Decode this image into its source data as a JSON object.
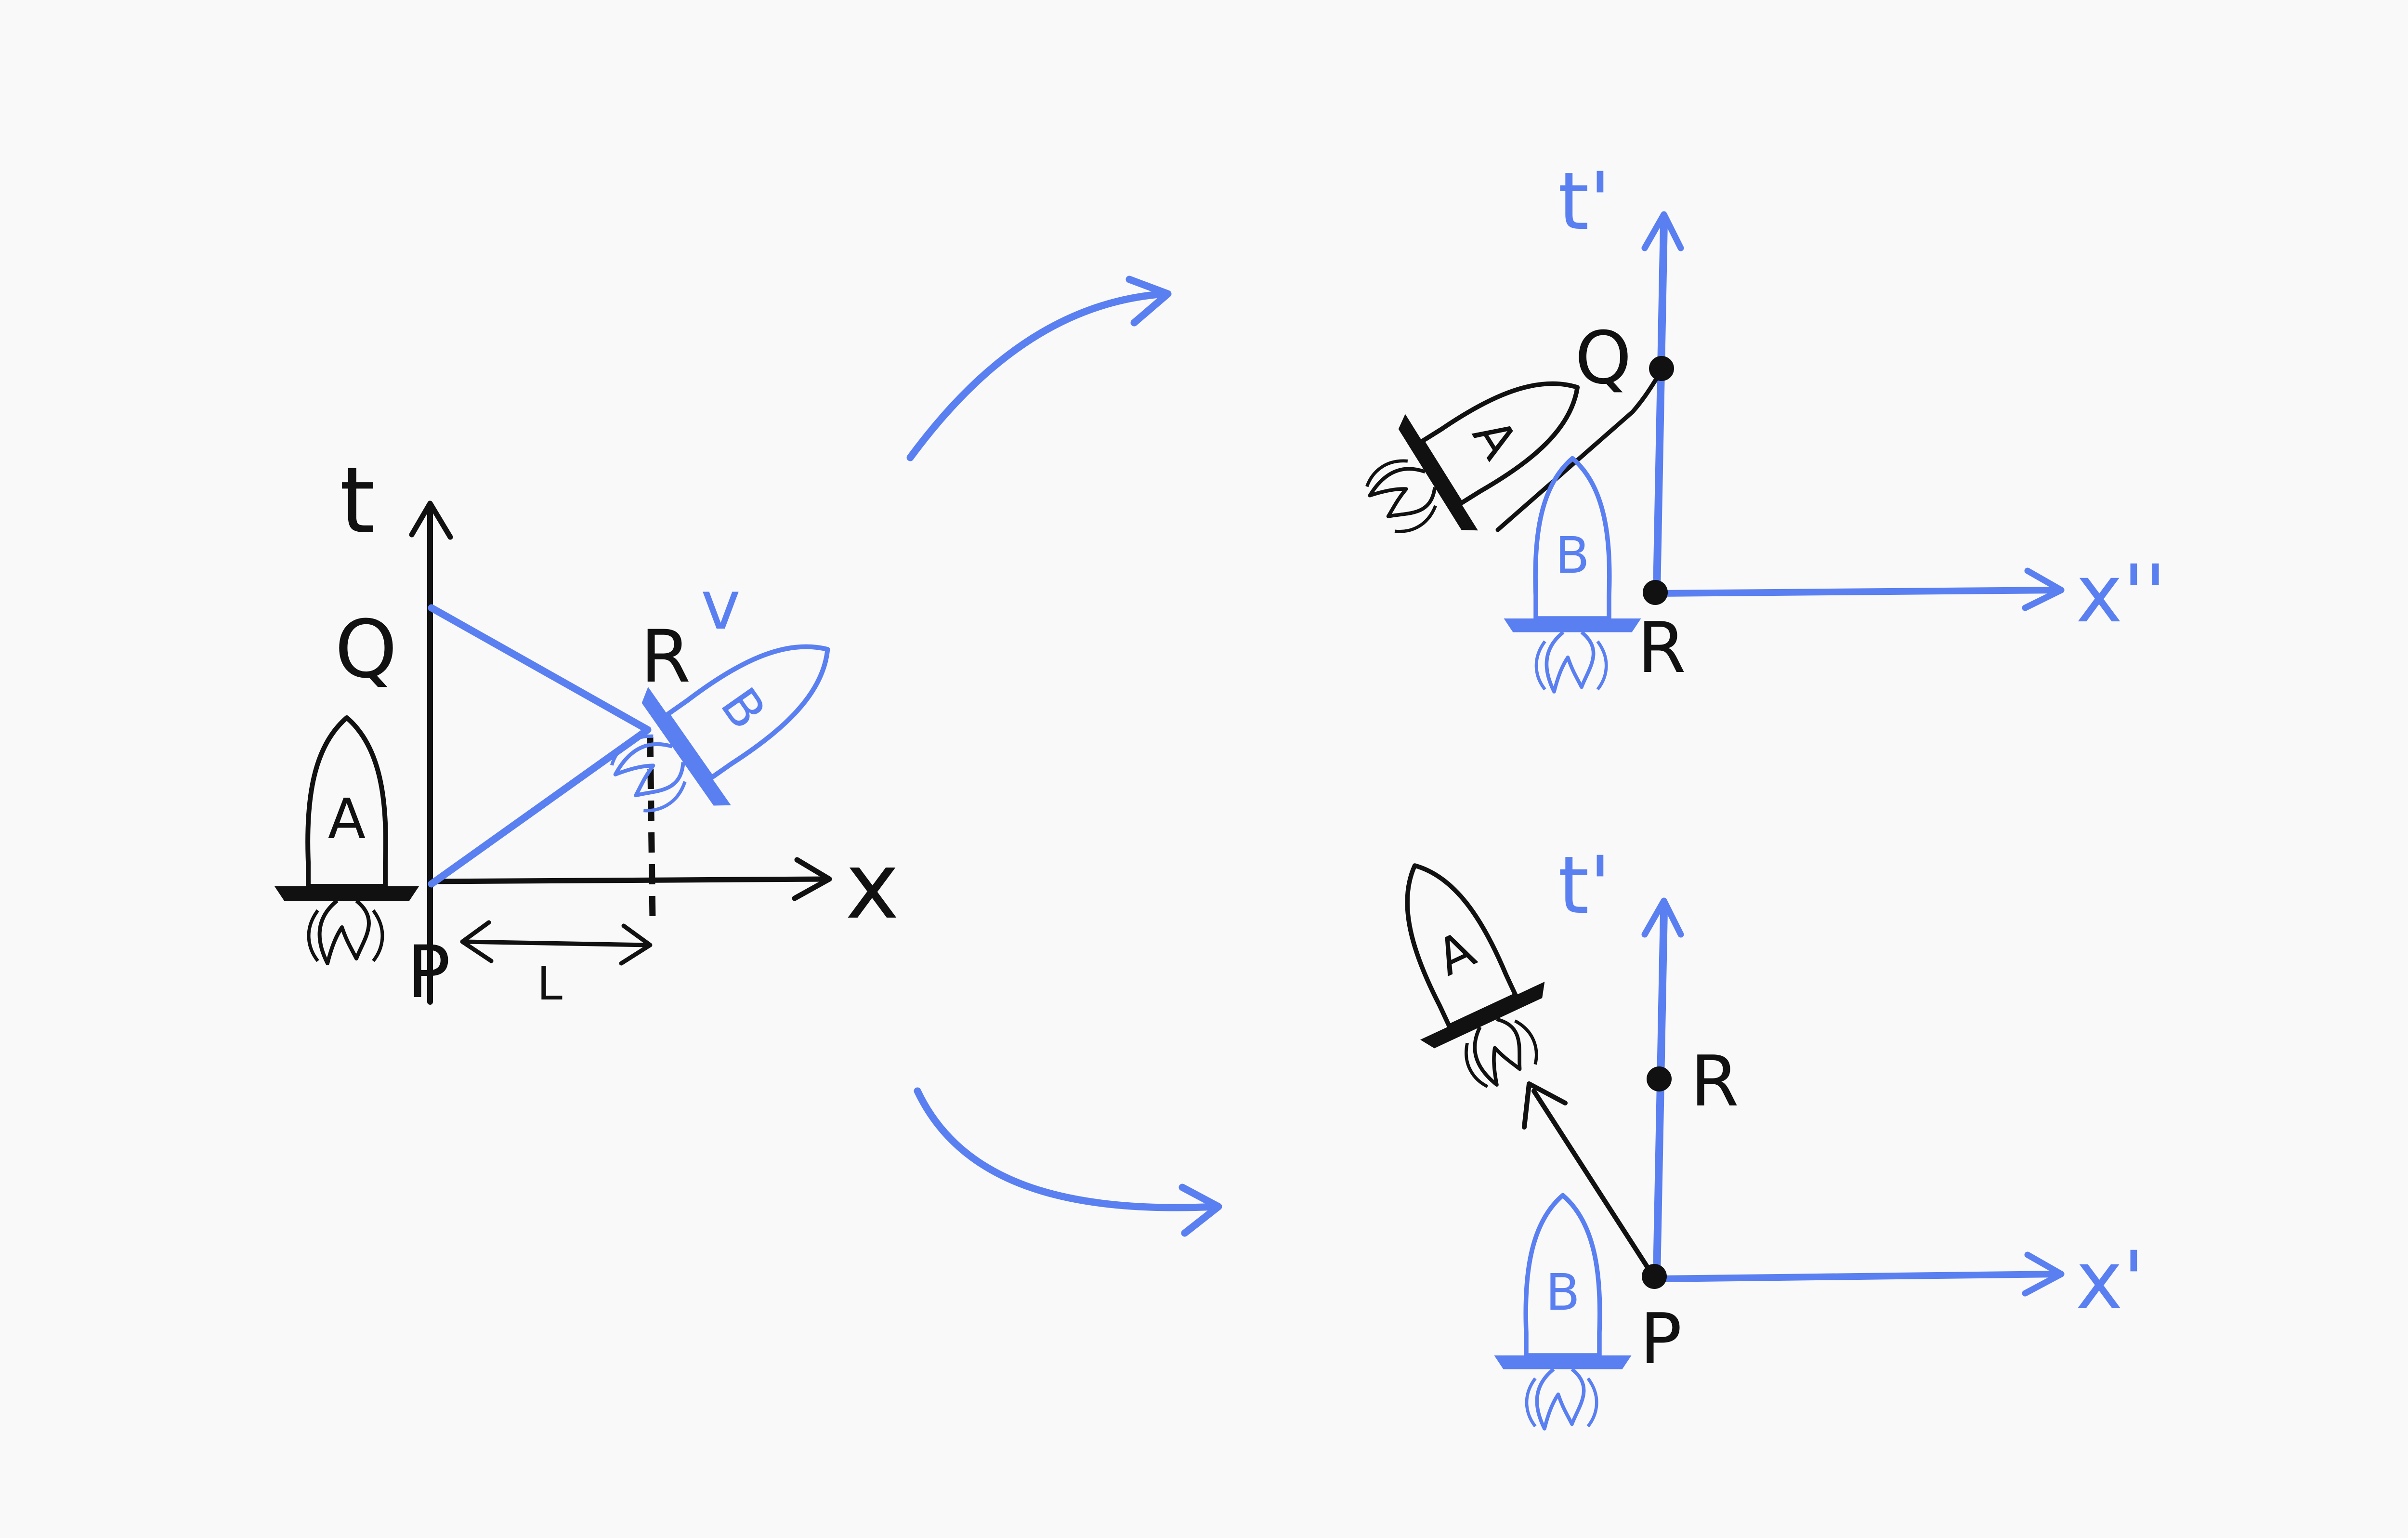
{
  "colors": {
    "background": "#f9f9f9",
    "ink": "#111111",
    "blue": "#5a7ff0"
  },
  "left_diagram": {
    "time_axis": "t",
    "space_axis": "x",
    "event_Q": "Q",
    "event_R": "R",
    "event_P": "P",
    "distance": "L",
    "velocity": "v",
    "rocket_A": "A",
    "rocket_B": "B"
  },
  "top_right_diagram": {
    "time_axis": "t'",
    "space_axis": "x''",
    "event_Q": "Q",
    "event_R": "R",
    "rocket_A": "A",
    "rocket_B": "B"
  },
  "bottom_right_diagram": {
    "time_axis": "t'",
    "space_axis": "x'",
    "event_R": "R",
    "event_P": "P",
    "rocket_A": "A",
    "rocket_B": "B"
  }
}
